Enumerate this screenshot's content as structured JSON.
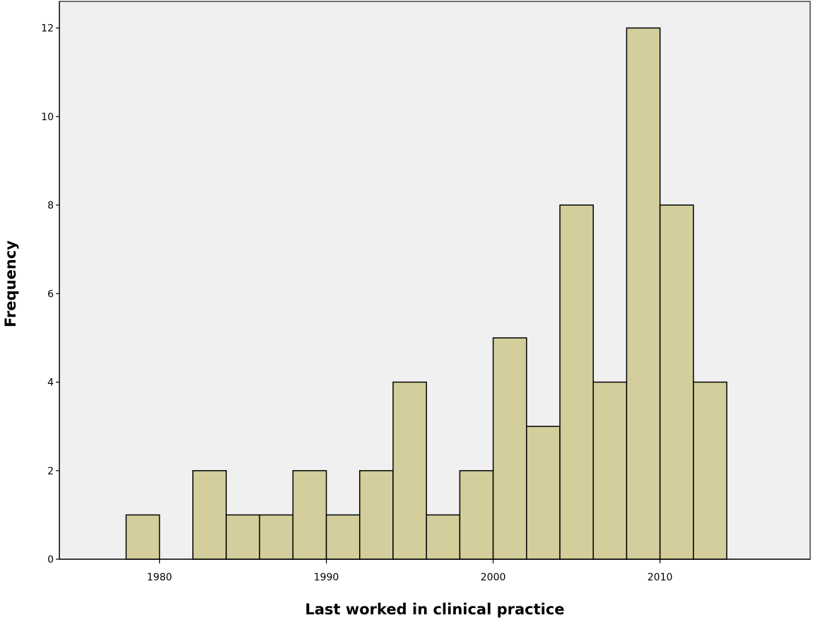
{
  "chart_data": {
    "type": "bar",
    "title": "",
    "xlabel": "Last worked in clinical practice",
    "ylabel": "Frequency",
    "bin_width": 2,
    "bins": [
      {
        "start": 1978,
        "end": 1980,
        "count": 1
      },
      {
        "start": 1980,
        "end": 1982,
        "count": 0
      },
      {
        "start": 1982,
        "end": 1984,
        "count": 2
      },
      {
        "start": 1984,
        "end": 1986,
        "count": 1
      },
      {
        "start": 1986,
        "end": 1988,
        "count": 1
      },
      {
        "start": 1988,
        "end": 1990,
        "count": 2
      },
      {
        "start": 1990,
        "end": 1992,
        "count": 1
      },
      {
        "start": 1992,
        "end": 1994,
        "count": 2
      },
      {
        "start": 1994,
        "end": 1996,
        "count": 4
      },
      {
        "start": 1996,
        "end": 1998,
        "count": 1
      },
      {
        "start": 1998,
        "end": 2000,
        "count": 2
      },
      {
        "start": 2000,
        "end": 2002,
        "count": 5
      },
      {
        "start": 2002,
        "end": 2004,
        "count": 3
      },
      {
        "start": 2004,
        "end": 2006,
        "count": 8
      },
      {
        "start": 2006,
        "end": 2008,
        "count": 4
      },
      {
        "start": 2008,
        "end": 2010,
        "count": 12
      },
      {
        "start": 2010,
        "end": 2012,
        "count": 8
      },
      {
        "start": 2012,
        "end": 2014,
        "count": 4
      }
    ],
    "x_ticks": [
      1980,
      1990,
      2000,
      2010
    ],
    "y_ticks": [
      0,
      2,
      4,
      6,
      8,
      10,
      12
    ],
    "xlim": [
      1974,
      2019
    ],
    "ylim": [
      0,
      12.6
    ],
    "grid": false,
    "legend": "none",
    "colors": {
      "bar_fill": "#d3ce9b",
      "plot_background": "#f0f0f0",
      "bar_stroke": "#000000"
    }
  }
}
